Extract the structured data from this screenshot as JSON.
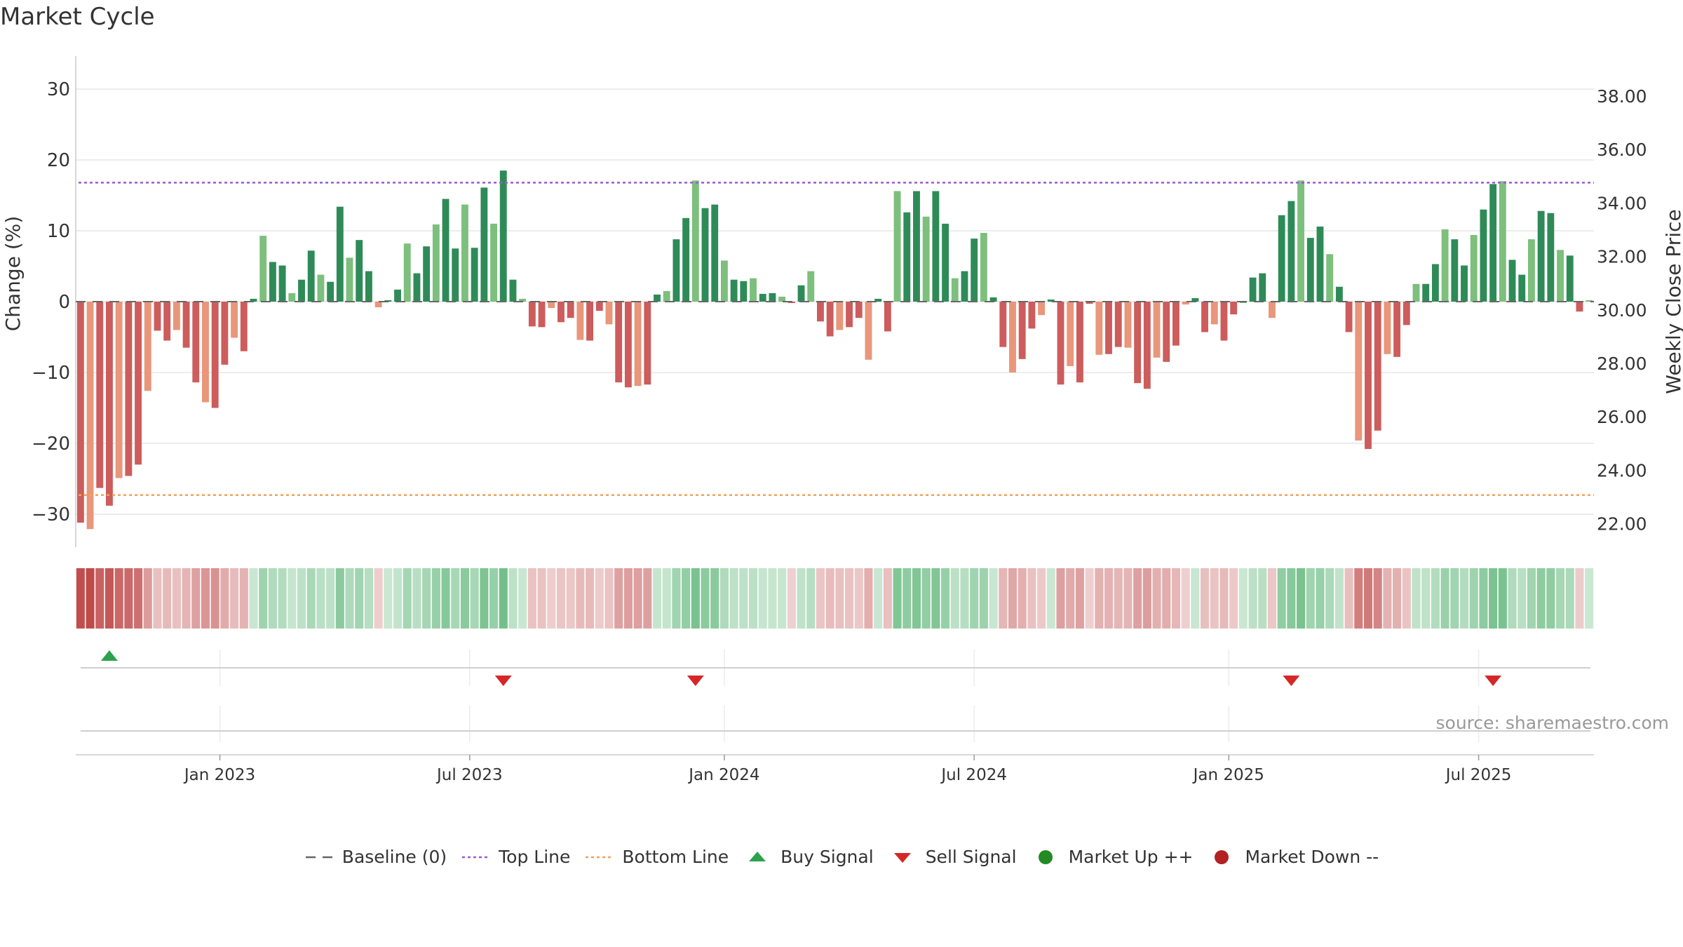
{
  "chart_data": {
    "type": "bar",
    "title": "Market Cycle",
    "ylabel": "Change (%)",
    "y2label": "Weekly Close Price",
    "ylim": [
      -35,
      35
    ],
    "y2lim": [
      21.0,
      39.0
    ],
    "yticks": [
      30,
      20,
      10,
      0,
      -10,
      -20,
      -30
    ],
    "yticks_labels": [
      "30",
      "20",
      "10",
      "0",
      "−10",
      "−20",
      "−30"
    ],
    "y2ticks": [
      "38.00",
      "36.00",
      "34.00",
      "32.00",
      "30.00",
      "28.00",
      "26.00",
      "24.00",
      "22.00"
    ],
    "xtick_labels": [
      "Jan 2023",
      "Jul 2023",
      "Jan 2024",
      "Jul 2024",
      "Jan 2025",
      "Jul 2025"
    ],
    "xtick_indices": [
      15,
      41,
      67.5,
      93.5,
      120,
      146
    ],
    "top_line": 16.8,
    "bottom_line": -27.3,
    "grid": true,
    "legend_position": "bottom-center",
    "values": [
      -31.2,
      -32.1,
      -26.3,
      -28.8,
      -24.9,
      -24.6,
      -23.0,
      -12.6,
      -4.1,
      -5.5,
      -4.0,
      -6.5,
      -11.4,
      -14.2,
      -15.0,
      -8.9,
      -5.1,
      -7.0,
      0.4,
      9.3,
      5.6,
      5.1,
      1.2,
      3.1,
      7.2,
      3.8,
      2.8,
      13.4,
      6.2,
      8.7,
      4.3,
      -0.8,
      0.2,
      1.7,
      8.2,
      4.0,
      7.8,
      10.9,
      14.5,
      7.5,
      13.7,
      7.6,
      16.1,
      11.0,
      18.5,
      3.1,
      0.4,
      -3.5,
      -3.6,
      -0.9,
      -2.9,
      -2.3,
      -5.4,
      -5.5,
      -1.3,
      -3.2,
      -11.4,
      -12.1,
      -11.9,
      -11.7,
      1.0,
      1.5,
      8.8,
      11.8,
      17.1,
      13.2,
      13.7,
      5.8,
      3.1,
      2.9,
      3.3,
      1.1,
      1.2,
      0.7,
      -0.2,
      2.3,
      4.3,
      -2.8,
      -4.9,
      -4.0,
      -3.6,
      -2.3,
      -8.2,
      0.4,
      -4.2,
      15.6,
      12.6,
      15.6,
      12.0,
      15.6,
      11.0,
      3.3,
      4.3,
      8.9,
      9.7,
      0.6,
      -6.4,
      -10.0,
      -8.1,
      -3.8,
      -1.9,
      0.3,
      -11.7,
      -9.1,
      -11.4,
      -0.3,
      -7.5,
      -7.4,
      -6.4,
      -6.5,
      -11.5,
      -12.3,
      -7.9,
      -8.5,
      -6.2,
      -0.4,
      0.5,
      -4.3,
      -3.2,
      -5.5,
      -1.8,
      0.0,
      3.4,
      4.0,
      -2.3,
      12.2,
      14.2,
      17.1,
      9.0,
      10.6,
      6.7,
      2.1,
      -4.3,
      -19.6,
      -20.8,
      -18.2,
      -7.4,
      -7.8,
      -3.3,
      2.5,
      2.5,
      5.3,
      10.2,
      8.8,
      5.1,
      9.4,
      13.0,
      16.6,
      17.0,
      5.9,
      3.8,
      8.8,
      12.8,
      12.5,
      7.3,
      6.5,
      -1.4,
      0.2
    ],
    "series_legend": [
      {
        "name": "Baseline (0)",
        "symbol": "dash-line",
        "color": "#666666"
      },
      {
        "name": "Top Line",
        "symbol": "dotted-line",
        "color": "#9b59d6"
      },
      {
        "name": "Bottom Line",
        "symbol": "dotted-line",
        "color": "#f0a25a"
      },
      {
        "name": "Buy Signal",
        "symbol": "triangle-up",
        "color": "#2ca24c"
      },
      {
        "name": "Sell Signal",
        "symbol": "triangle-down",
        "color": "#d62728"
      },
      {
        "name": "Market Up ++",
        "symbol": "circle",
        "color": "#228b22"
      },
      {
        "name": "Market Down --",
        "symbol": "circle",
        "color": "#b22222"
      }
    ],
    "buy_signal_indices": [
      3
    ],
    "sell_signal_indices": [
      44,
      64,
      126,
      147
    ],
    "colors": {
      "up_strong": "#2e8b57",
      "up_light": "#7dbf7d",
      "down_strong": "#cd5c5c",
      "down_light": "#e9967a"
    },
    "source": "source: sharemaestro.com"
  }
}
